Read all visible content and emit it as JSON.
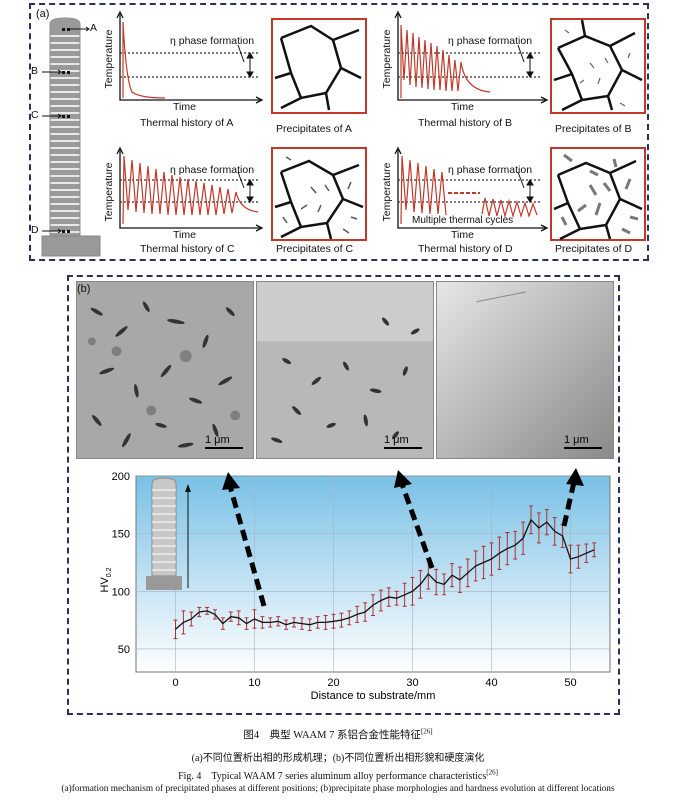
{
  "panel_a": {
    "label": "(a)",
    "markers": [
      "A",
      "B",
      "C",
      "D"
    ],
    "eta_label": "η phase formation",
    "temp_axis": "Temperature",
    "time_axis": "Time",
    "multiple_cycles": "Multiple thermal cycles",
    "captions": {
      "thermal_a": "Thermal history of A",
      "thermal_b": "Thermal history of B",
      "thermal_c": "Thermal history of C",
      "thermal_d": "Thermal history of D",
      "precip_a": "Precipitates of A",
      "precip_b": "Precipitates of B",
      "precip_c": "Precipitates of C",
      "precip_d": "Precipitates of D"
    }
  },
  "panel_b": {
    "label": "(b)",
    "scale_label": "1 μm",
    "chart_data": {
      "type": "line",
      "xlabel": "Distance to substrate/mm",
      "ylabel": "HV0.2",
      "xlim": [
        -5,
        55
      ],
      "ylim": [
        30,
        200
      ],
      "xticks": [
        0,
        10,
        20,
        30,
        40,
        50
      ],
      "yticks": [
        50,
        100,
        150,
        200
      ],
      "grid": true,
      "series": [
        {
          "x": [
            0,
            1,
            2,
            3,
            4,
            5,
            6,
            7,
            8,
            9,
            10,
            11,
            12,
            13,
            14,
            15,
            16,
            17,
            18,
            19,
            20,
            21,
            22,
            23,
            24,
            25,
            26,
            27,
            28,
            29,
            30,
            31,
            32,
            33,
            34,
            35,
            36,
            37,
            38,
            39,
            40,
            41,
            42,
            43,
            44,
            45,
            46,
            47,
            48,
            49,
            50,
            51,
            52,
            53
          ],
          "y": [
            67,
            73,
            76,
            82,
            83,
            80,
            72,
            78,
            77,
            72,
            76,
            73,
            73,
            74,
            71,
            73,
            72,
            71,
            73,
            73,
            74,
            75,
            77,
            80,
            82,
            88,
            92,
            95,
            94,
            97,
            100,
            106,
            115,
            108,
            106,
            114,
            110,
            116,
            122,
            125,
            128,
            133,
            137,
            140,
            146,
            162,
            155,
            160,
            152,
            148,
            128,
            130,
            133,
            136
          ],
          "err": [
            8,
            10,
            6,
            4,
            3,
            4,
            5,
            4,
            6,
            5,
            8,
            5,
            4,
            4,
            4,
            4,
            5,
            5,
            5,
            6,
            6,
            6,
            6,
            7,
            8,
            9,
            9,
            8,
            6,
            10,
            12,
            12,
            13,
            11,
            9,
            10,
            11,
            12,
            13,
            14,
            14,
            14,
            14,
            12,
            14,
            12,
            13,
            11,
            12,
            10,
            12,
            10,
            8,
            6
          ]
        }
      ]
    }
  },
  "caption": {
    "zh_title": "图4　典型 WAAM 7 系铝合金性能特征",
    "zh_ref": "[26]",
    "zh_sub": "(a)不同位置析出相的形成机理；(b)不同位置析出相形貌和硬度演化",
    "en_title": "Fig. 4　Typical WAAM 7 series aluminum alloy performance characteristics",
    "en_ref": "[26]",
    "en_sub": "(a)formation mechanism of precipitated phases at different positions; (b)precipitate phase morphologies and hardness evolution at different locations"
  }
}
